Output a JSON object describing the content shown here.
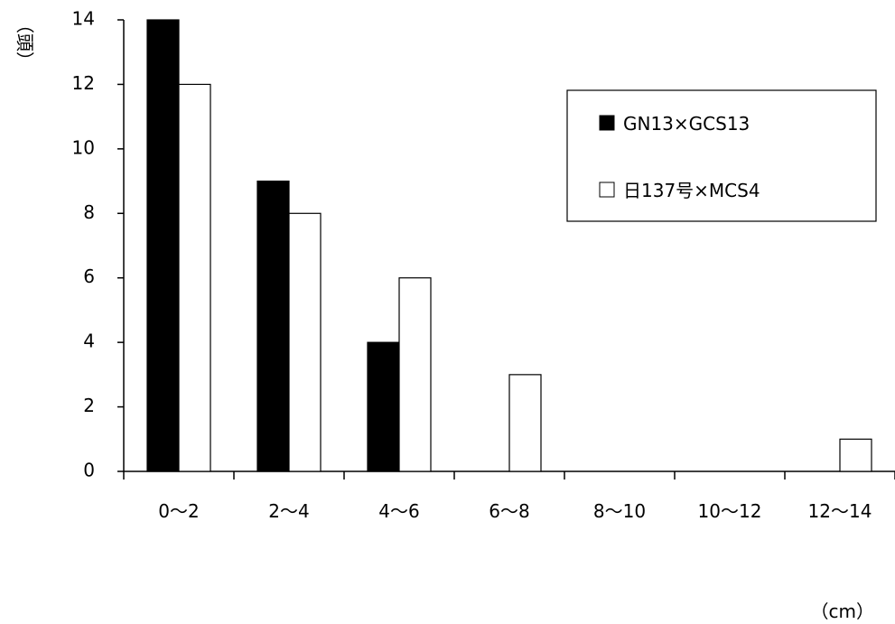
{
  "chart_data": {
    "type": "bar",
    "categories": [
      "0〜2",
      "2〜4",
      "4〜6",
      "6〜8",
      "8〜10",
      "10〜12",
      "12〜14"
    ],
    "series": [
      {
        "name": "GN13×GCS13",
        "values": [
          14,
          9,
          4,
          0,
          0,
          0,
          0
        ],
        "color": "#000000"
      },
      {
        "name": "日137号×MCS4",
        "values": [
          12,
          8,
          6,
          3,
          0,
          0,
          1
        ],
        "color": "#ffffff"
      }
    ],
    "ylabel": "（頭）",
    "xlabel": "（cm）",
    "ylim": [
      0,
      14
    ],
    "yticks": [
      0,
      2,
      4,
      6,
      8,
      10,
      12,
      14
    ],
    "grid": false,
    "legend_position": "top-right"
  }
}
